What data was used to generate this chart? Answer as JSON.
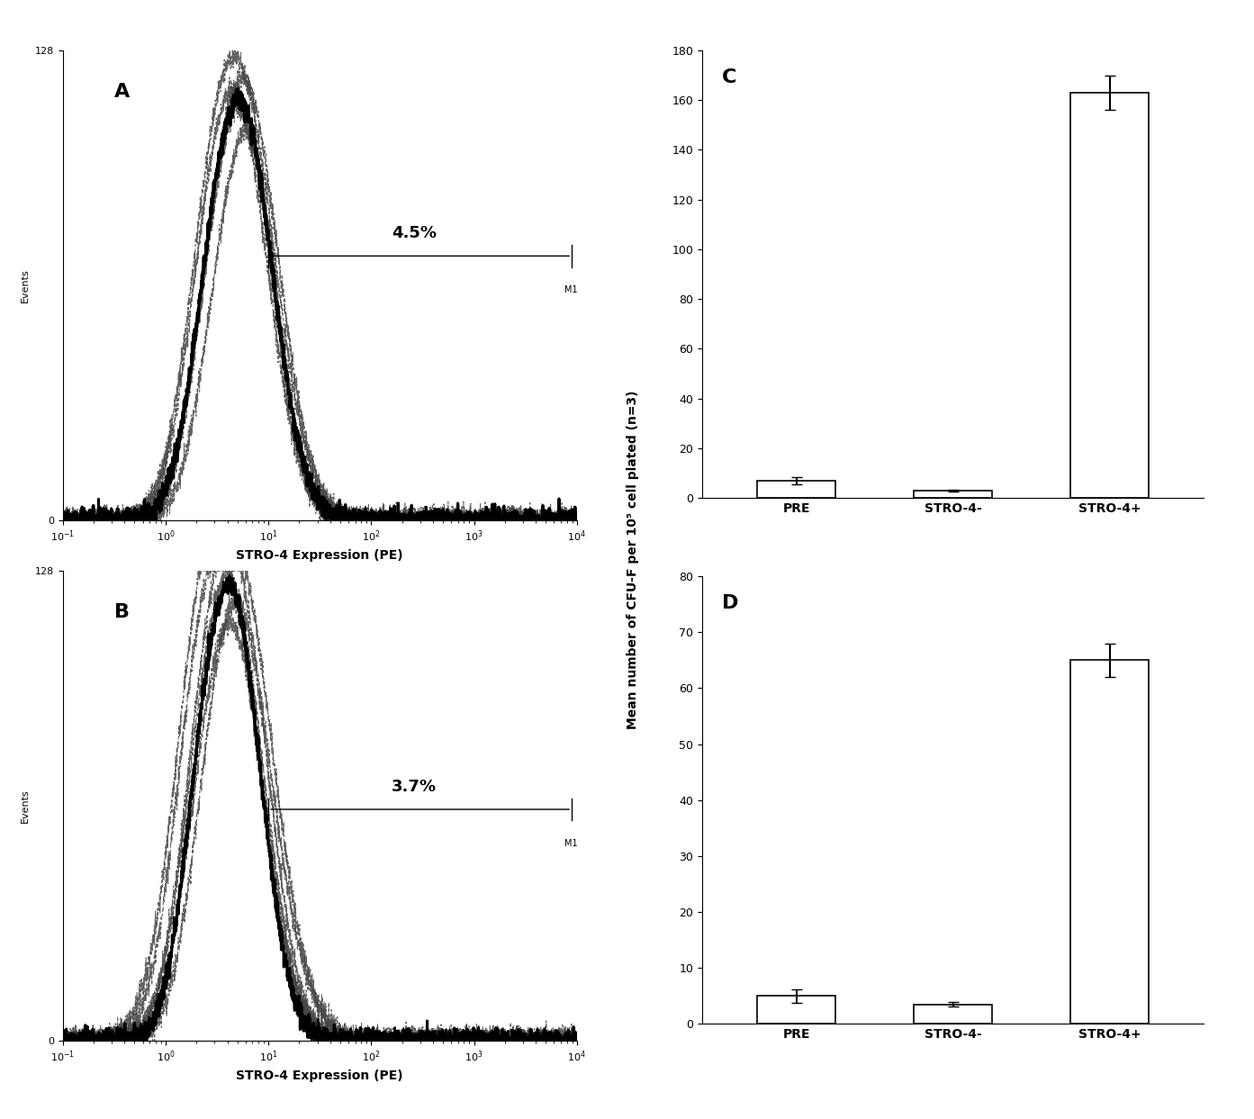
{
  "panel_A_label": "A",
  "panel_B_label": "B",
  "panel_C_label": "C",
  "panel_D_label": "D",
  "flow_xlabel": "STRO-4 Expression (PE)",
  "flow_ylabel": "Events",
  "flow_ytop": 128,
  "panel_A_percent": "4.5%",
  "panel_B_percent": "3.7%",
  "bar_categories": [
    "PRE",
    "STRO-4-",
    "STRO-4+"
  ],
  "bar_values_C": [
    7,
    3,
    163
  ],
  "bar_errors_C": [
    1.5,
    0.4,
    7
  ],
  "bar_ylim_C": [
    0,
    180
  ],
  "bar_yticks_C": [
    0,
    20,
    40,
    60,
    80,
    100,
    120,
    140,
    160,
    180
  ],
  "bar_values_D": [
    5,
    3.5,
    65
  ],
  "bar_errors_D": [
    1.2,
    0.4,
    3
  ],
  "bar_ylim_D": [
    0,
    80
  ],
  "bar_yticks_D": [
    0,
    10,
    20,
    30,
    40,
    50,
    60,
    70,
    80
  ],
  "bar_ylabel": "Mean number of CFU-F per 10⁵ cell plated (n=3)",
  "bg_color": "#ffffff",
  "bar_facecolor": "#ffffff",
  "bar_edgecolor": "#000000"
}
